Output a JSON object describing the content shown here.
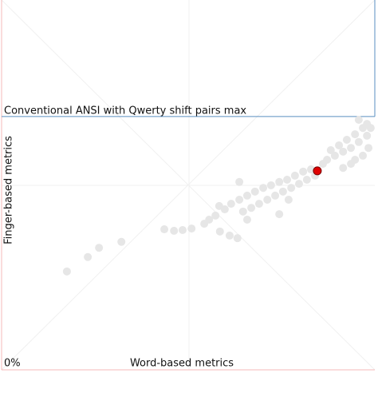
{
  "chart_data": {
    "type": "scatter",
    "title": "Conventional ANSI with Qwerty shift pairs max",
    "x_label": "Word-based metrics",
    "y_label": "Finger-based metrics",
    "xlim": [
      0,
      100
    ],
    "ylim": [
      0,
      100
    ],
    "xticks": [
      {
        "value": 0,
        "label": "0%"
      }
    ],
    "max_line": 68.5,
    "series": [
      {
        "color": "#e6e6e6",
        "x": [
          17.5,
          23.1,
          26.1,
          32.1,
          43.6,
          46.2,
          48.5,
          50.9,
          54.3,
          55.6,
          57.3,
          58.5,
          61.1,
          63.2,
          59.8,
          61.5,
          63.7,
          65.8,
          67.9,
          70.1,
          72.2,
          74.4,
          76.5,
          78.6,
          80.8,
          82.9,
          86.1,
          87.2,
          89.3,
          91.5,
          93.6,
          95.7,
          97.9,
          98.9,
          96.8,
          94.7,
          92.5,
          90.4,
          88.2,
          84.0,
          81.8,
          79.7,
          77.6,
          75.4,
          73.3,
          71.2,
          69.0,
          66.9,
          64.7,
          65.8,
          74.4,
          76.9,
          93.6,
          96.8,
          98.3,
          95.7,
          97.9,
          94.7,
          91.5,
          63.7,
          58.3
        ],
        "y": [
          26.6,
          30.5,
          33.0,
          34.6,
          38.0,
          37.6,
          37.8,
          38.2,
          39.5,
          40.6,
          41.7,
          37.4,
          36.3,
          35.6,
          43.4,
          44.9,
          46.0,
          47.1,
          48.2,
          49.2,
          49.9,
          50.8,
          51.4,
          52.5,
          53.6,
          54.2,
          55.7,
          56.8,
          57.9,
          59.0,
          60.0,
          61.6,
          63.3,
          65.4,
          65.4,
          63.7,
          62.2,
          60.7,
          59.4,
          52.5,
          51.4,
          50.3,
          49.2,
          48.2,
          47.1,
          46.0,
          44.9,
          43.8,
          42.8,
          40.6,
          42.1,
          46.0,
          55.7,
          57.9,
          60.0,
          67.6,
          66.5,
          56.8,
          54.6,
          50.8,
          44.3
        ]
      },
      {
        "color": "#e00000",
        "x": [
          84.6
        ],
        "y": [
          53.8
        ]
      }
    ]
  }
}
